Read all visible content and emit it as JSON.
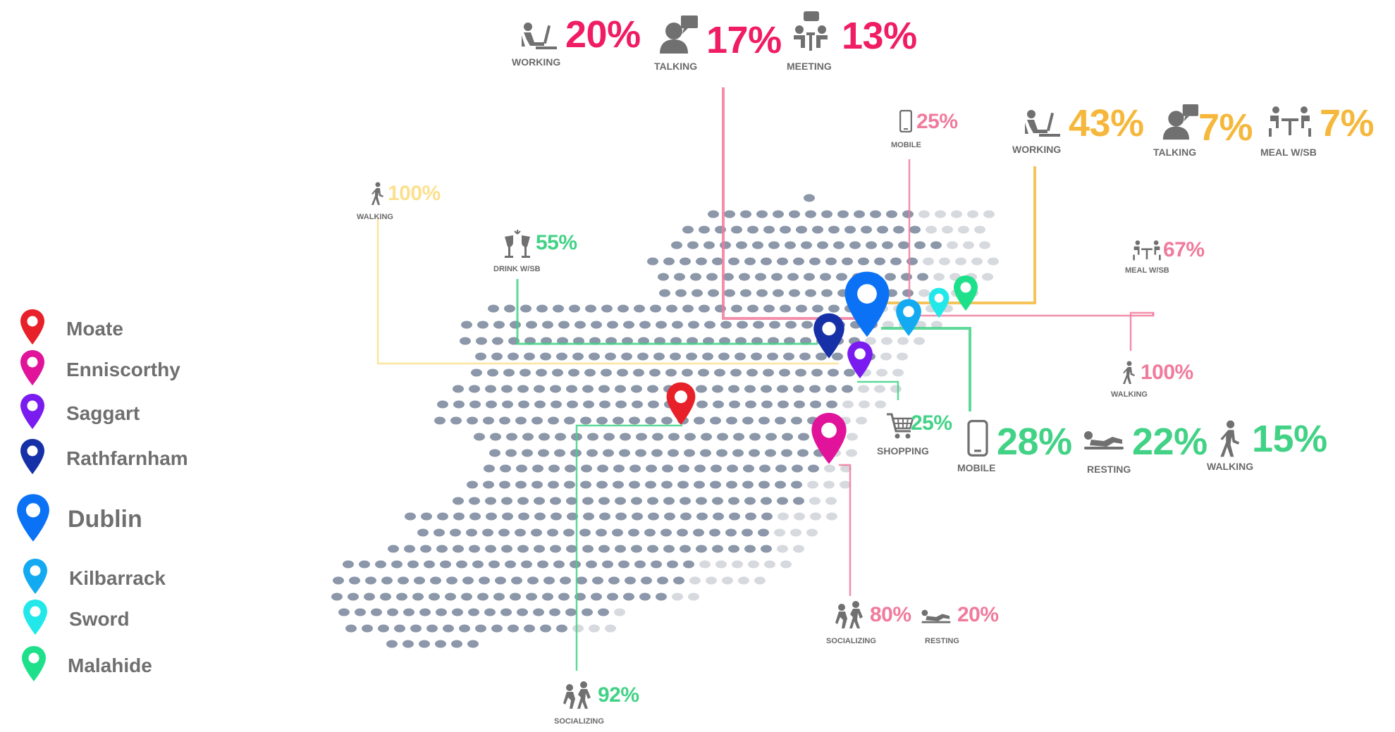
{
  "colors": {
    "pink": "#f01c64",
    "pink_light": "#f07b9c",
    "orange": "#f5b83c",
    "orange_light": "#fbe090",
    "green": "#42d286",
    "dot_dark": "#8c97aa",
    "dot_light": "#d6d9de",
    "icon_gray": "#707070"
  },
  "legend": [
    {
      "name": "Moate",
      "color": "#e8202a",
      "pin": "location-pin-red-icon"
    },
    {
      "name": "Enniscorthy",
      "color": "#e0139a",
      "pin": "location-pin-magenta-icon"
    },
    {
      "name": "Saggart",
      "color": "#7a1cf0",
      "pin": "location-pin-violet-icon"
    },
    {
      "name": "Rathfarnham",
      "color": "#1631a8",
      "pin": "location-pin-navy-icon"
    },
    {
      "name": "Dublin",
      "color": "#0b72f5",
      "pin": "location-pin-blue-icon"
    },
    {
      "name": "Kilbarrack",
      "color": "#13aaf2",
      "pin": "location-pin-lightblue-icon"
    },
    {
      "name": "Sword",
      "color": "#22e8ea",
      "pin": "location-pin-cyan-icon"
    },
    {
      "name": "Malahide",
      "color": "#1fe08a",
      "pin": "location-pin-green-icon"
    }
  ],
  "stats": [
    {
      "value": "20%",
      "caption": "WORKING",
      "icon": "working-icon",
      "color": "#f01c64"
    },
    {
      "value": "17%",
      "caption": "TALKING",
      "icon": "talking-icon",
      "color": "#f01c64"
    },
    {
      "value": "13%",
      "caption": "MEETING",
      "icon": "meeting-icon",
      "color": "#f01c64"
    },
    {
      "value": "25%",
      "caption": "MOBILE",
      "icon": "mobile-icon",
      "color": "#f07b9c"
    },
    {
      "value": "43%",
      "caption": "WORKING",
      "icon": "working-icon",
      "color": "#f5b83c"
    },
    {
      "value": "7%",
      "caption": "TALKING",
      "icon": "talking-icon",
      "color": "#f5b83c"
    },
    {
      "value": "7%",
      "caption": "MEAL W/SB",
      "icon": "meal-icon",
      "color": "#f5b83c"
    },
    {
      "value": "100%",
      "caption": "WALKING",
      "icon": "walking-icon",
      "color": "#fbe090"
    },
    {
      "value": "55%",
      "caption": "DRINK W/SB",
      "icon": "drink-icon",
      "color": "#42d286"
    },
    {
      "value": "67%",
      "caption": "MEAL W/SB",
      "icon": "meal-icon",
      "color": "#f07b9c"
    },
    {
      "value": "100%",
      "caption": "WALKING",
      "icon": "walking-icon",
      "color": "#f07b9c"
    },
    {
      "value": "25%",
      "caption": "SHOPPING",
      "icon": "shopping-cart-icon",
      "color": "#42d286"
    },
    {
      "value": "28%",
      "caption": "MOBILE",
      "icon": "mobile-icon",
      "color": "#42d286"
    },
    {
      "value": "22%",
      "caption": "RESTING",
      "icon": "resting-icon",
      "color": "#42d286"
    },
    {
      "value": "15%",
      "caption": "WALKING",
      "icon": "walking-icon",
      "color": "#42d286"
    },
    {
      "value": "80%",
      "caption": "SOCIALIZING",
      "icon": "socializing-icon",
      "color": "#f07b9c"
    },
    {
      "value": "20%",
      "caption": "RESTING",
      "icon": "resting-icon",
      "color": "#f07b9c"
    },
    {
      "value": "92%",
      "caption": "SOCIALIZING",
      "icon": "socializing-icon",
      "color": "#42d286"
    }
  ]
}
